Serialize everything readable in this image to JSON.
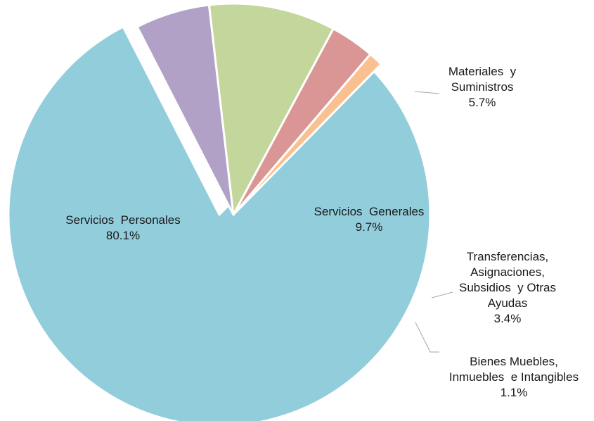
{
  "chart_data": {
    "type": "pie",
    "exploded": true,
    "slices": [
      {
        "name": "Servicios Personales",
        "label_lines": [
          "Servicios  Personales"
        ],
        "value_label": "80.1%",
        "value": 80.1,
        "color": "#92CDDC"
      },
      {
        "name": "Materiales y Suministros",
        "label_lines": [
          "Materiales  y",
          "Suministros"
        ],
        "value_label": "5.7%",
        "value": 5.7,
        "color": "#B2A1C7"
      },
      {
        "name": "Servicios Generales",
        "label_lines": [
          "Servicios  Generales"
        ],
        "value_label": "9.7%",
        "value": 9.7,
        "color": "#C3D69B"
      },
      {
        "name": "Transferencias, Asignaciones, Subsidios y Otras Ayudas",
        "label_lines": [
          "Transferencias,",
          "Asignaciones,",
          "Subsidios  y Otras",
          "Ayudas"
        ],
        "value_label": "3.4%",
        "value": 3.4,
        "color": "#D99694"
      },
      {
        "name": "Bienes Muebles, Inmuebles e Intangibles",
        "label_lines": [
          "Bienes Muebles,",
          "Inmuebles  e Intangibles"
        ],
        "value_label": "1.1%",
        "value": 1.1,
        "color": "#FAC090"
      }
    ]
  }
}
